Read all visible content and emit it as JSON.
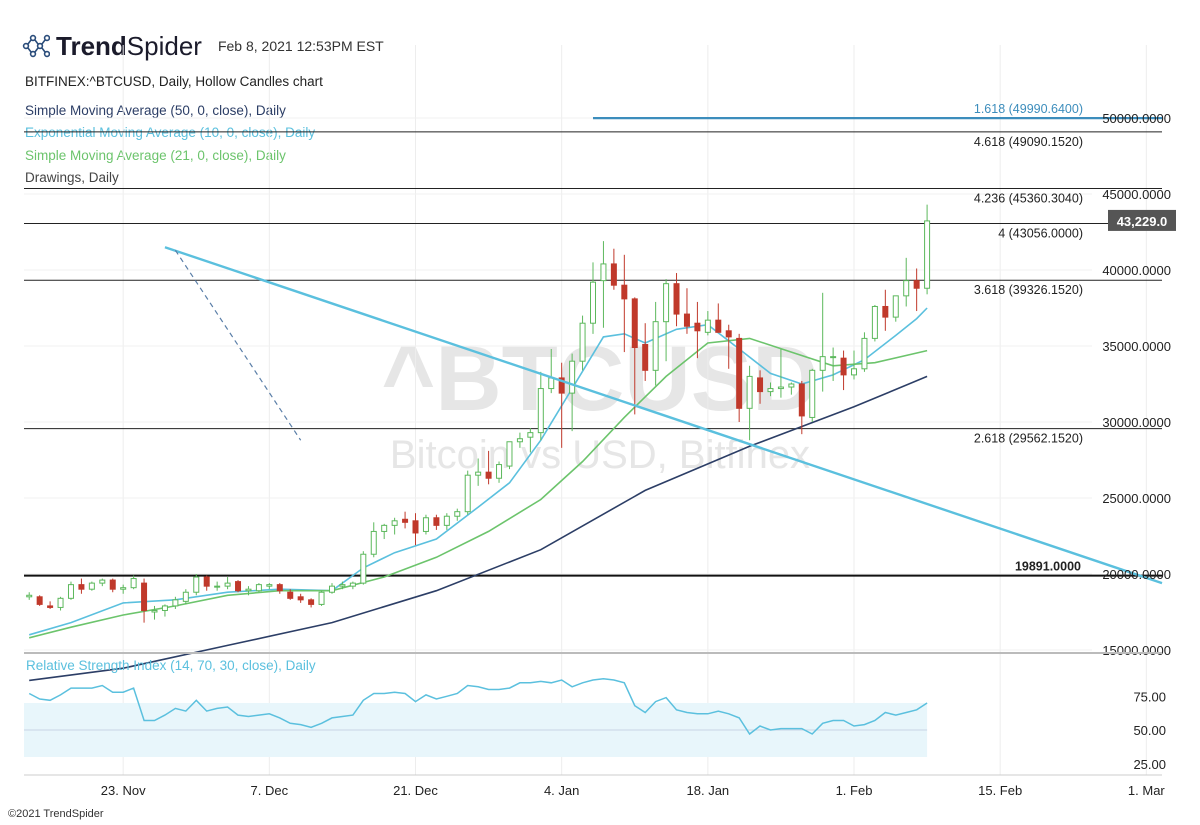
{
  "header": {
    "brand_bold": "Trend",
    "brand_light": "Spider",
    "timestamp": "Feb 8, 2021 12:53PM EST"
  },
  "legend": {
    "symbol_line": "BITFINEX:^BTCUSD, Daily, Hollow Candles chart",
    "sma50": "Simple Moving Average (50, 0, close), Daily",
    "ema10": "Exponential Moving Average (10, 0, close), Daily",
    "sma21": "Simple Moving Average (21, 0, close), Daily",
    "drawings": "Drawings, Daily"
  },
  "watermark": {
    "symbol": "^BTCUSD",
    "name": "Bitcoin vs USD, Bitfinex"
  },
  "footer": {
    "copyright": "©2021 TrendSpider"
  },
  "colors": {
    "up": "#5cb85c",
    "down": "#c0392b",
    "sma50": "#2c3e66",
    "ema10": "#5bc0de",
    "sma21": "#6cc46c",
    "trendline": "#5bc0de",
    "fib_top": "#3c8dbc",
    "rsi": "#5bc0de",
    "rsi_band": "#e8f6fb"
  },
  "chart_data": [
    {
      "type": "candlestick",
      "title": "BITFINEX:^BTCUSD, Daily, Hollow Candles chart",
      "x_ticks": [
        "23. Nov",
        "7. Dec",
        "21. Dec",
        "4. Jan",
        "18. Jan",
        "1. Feb",
        "15. Feb",
        "1. Mar"
      ],
      "x_tick_days": [
        0,
        14,
        28,
        42,
        56,
        70,
        84,
        98
      ],
      "x_range": [
        -9.5,
        99.5
      ],
      "y_ticks": [
        "50000.0000",
        "45000.0000",
        "40000.0000",
        "35000.0000",
        "30000.0000",
        "25000.0000",
        "20000.0000",
        "15000.0000"
      ],
      "y_tick_values": [
        50000,
        45000,
        40000,
        35000,
        30000,
        25000,
        20000,
        15000
      ],
      "ylim": [
        14000,
        52000
      ],
      "last_price": 43229,
      "last_price_label": "43,229.0",
      "horizontal_levels": [
        {
          "label": "1.618 (49990.6400)",
          "value": 49990.64,
          "style": "blue"
        },
        {
          "label": "4.618 (49090.1520)",
          "value": 49090.152,
          "style": "black"
        },
        {
          "label": "4.236 (45360.3040)",
          "value": 45360.304,
          "style": "black"
        },
        {
          "label": "4 (43056.0000)",
          "value": 43056,
          "style": "black"
        },
        {
          "label": "3.618 (39326.1520)",
          "value": 39326.152,
          "style": "black"
        },
        {
          "label": "2.618 (29562.1520)",
          "value": 29562.152,
          "style": "black"
        },
        {
          "label": "19891.0000",
          "value": 19891,
          "style": "bold"
        }
      ],
      "trendline": {
        "x": [
          4,
          99.5
        ],
        "y": [
          41500,
          19400
        ]
      },
      "dashed_line": {
        "x": [
          5,
          17
        ],
        "y": [
          41300,
          28800
        ]
      },
      "candles": [
        {
          "x": -9,
          "o": 18500,
          "h": 18800,
          "l": 18300,
          "c": 18600
        },
        {
          "x": -8,
          "o": 18500,
          "h": 18600,
          "l": 17900,
          "c": 18000
        },
        {
          "x": -7,
          "o": 17900,
          "h": 18200,
          "l": 17700,
          "c": 17800
        },
        {
          "x": -6,
          "o": 17800,
          "h": 18500,
          "l": 17600,
          "c": 18400
        },
        {
          "x": -5,
          "o": 18400,
          "h": 19500,
          "l": 18300,
          "c": 19300
        },
        {
          "x": -4,
          "o": 19300,
          "h": 19700,
          "l": 18700,
          "c": 19000
        },
        {
          "x": -3,
          "o": 19000,
          "h": 19500,
          "l": 18900,
          "c": 19400
        },
        {
          "x": -2,
          "o": 19400,
          "h": 19700,
          "l": 19200,
          "c": 19600
        },
        {
          "x": -1,
          "o": 19600,
          "h": 19700,
          "l": 18800,
          "c": 19000
        },
        {
          "x": 0,
          "o": 19000,
          "h": 19300,
          "l": 18700,
          "c": 19100
        },
        {
          "x": 1,
          "o": 19100,
          "h": 19900,
          "l": 19000,
          "c": 19700
        },
        {
          "x": 2,
          "o": 19400,
          "h": 19700,
          "l": 16800,
          "c": 17600
        },
        {
          "x": 3,
          "o": 17500,
          "h": 17900,
          "l": 17000,
          "c": 17600
        },
        {
          "x": 4,
          "o": 17600,
          "h": 18000,
          "l": 17200,
          "c": 17900
        },
        {
          "x": 5,
          "o": 17900,
          "h": 18500,
          "l": 17700,
          "c": 18300
        },
        {
          "x": 6,
          "o": 18200,
          "h": 19000,
          "l": 18000,
          "c": 18800
        },
        {
          "x": 7,
          "o": 18800,
          "h": 20000,
          "l": 18600,
          "c": 19800
        },
        {
          "x": 8,
          "o": 19800,
          "h": 19900,
          "l": 18900,
          "c": 19200
        },
        {
          "x": 9,
          "o": 19200,
          "h": 19500,
          "l": 18900,
          "c": 19200
        },
        {
          "x": 10,
          "o": 19200,
          "h": 19800,
          "l": 19000,
          "c": 19400
        },
        {
          "x": 11,
          "o": 19500,
          "h": 19600,
          "l": 18800,
          "c": 18900
        },
        {
          "x": 12,
          "o": 18900,
          "h": 19200,
          "l": 18600,
          "c": 19000
        },
        {
          "x": 13,
          "o": 18900,
          "h": 19400,
          "l": 18800,
          "c": 19300
        },
        {
          "x": 14,
          "o": 19200,
          "h": 19400,
          "l": 19000,
          "c": 19300
        },
        {
          "x": 15,
          "o": 19300,
          "h": 19400,
          "l": 18700,
          "c": 18900
        },
        {
          "x": 16,
          "o": 18800,
          "h": 19000,
          "l": 18300,
          "c": 18400
        },
        {
          "x": 17,
          "o": 18500,
          "h": 18700,
          "l": 18100,
          "c": 18300
        },
        {
          "x": 18,
          "o": 18300,
          "h": 18400,
          "l": 17800,
          "c": 18000
        },
        {
          "x": 19,
          "o": 18000,
          "h": 18900,
          "l": 17900,
          "c": 18800
        },
        {
          "x": 20,
          "o": 18800,
          "h": 19400,
          "l": 18700,
          "c": 19200
        },
        {
          "x": 21,
          "o": 19200,
          "h": 19500,
          "l": 19000,
          "c": 19300
        },
        {
          "x": 22,
          "o": 19200,
          "h": 19500,
          "l": 19000,
          "c": 19400
        },
        {
          "x": 23,
          "o": 19400,
          "h": 21500,
          "l": 19300,
          "c": 21300
        },
        {
          "x": 24,
          "o": 21300,
          "h": 23400,
          "l": 21100,
          "c": 22800
        },
        {
          "x": 25,
          "o": 22800,
          "h": 23300,
          "l": 22300,
          "c": 23200
        },
        {
          "x": 26,
          "o": 23200,
          "h": 23700,
          "l": 22600,
          "c": 23500
        },
        {
          "x": 27,
          "o": 23600,
          "h": 24100,
          "l": 23000,
          "c": 23400
        },
        {
          "x": 28,
          "o": 23500,
          "h": 24000,
          "l": 21900,
          "c": 22700
        },
        {
          "x": 29,
          "o": 22800,
          "h": 23900,
          "l": 22600,
          "c": 23700
        },
        {
          "x": 30,
          "o": 23700,
          "h": 23900,
          "l": 22900,
          "c": 23200
        },
        {
          "x": 31,
          "o": 23200,
          "h": 24000,
          "l": 22900,
          "c": 23800
        },
        {
          "x": 32,
          "o": 23800,
          "h": 24300,
          "l": 23500,
          "c": 24100
        },
        {
          "x": 33,
          "o": 24100,
          "h": 26800,
          "l": 23900,
          "c": 26500
        },
        {
          "x": 34,
          "o": 26500,
          "h": 27600,
          "l": 25800,
          "c": 26700
        },
        {
          "x": 35,
          "o": 26700,
          "h": 28100,
          "l": 25900,
          "c": 26300
        },
        {
          "x": 36,
          "o": 26300,
          "h": 27400,
          "l": 26000,
          "c": 27200
        },
        {
          "x": 37,
          "o": 27100,
          "h": 28600,
          "l": 26900,
          "c": 28700
        },
        {
          "x": 38,
          "o": 28700,
          "h": 29300,
          "l": 28300,
          "c": 28900
        },
        {
          "x": 39,
          "o": 29000,
          "h": 29600,
          "l": 28000,
          "c": 29300
        },
        {
          "x": 40,
          "o": 29300,
          "h": 33300,
          "l": 28800,
          "c": 32200
        },
        {
          "x": 41,
          "o": 32200,
          "h": 34800,
          "l": 31900,
          "c": 32900
        },
        {
          "x": 42,
          "o": 32900,
          "h": 33900,
          "l": 28300,
          "c": 31900
        },
        {
          "x": 43,
          "o": 31900,
          "h": 34500,
          "l": 29400,
          "c": 34000
        },
        {
          "x": 44,
          "o": 34000,
          "h": 37000,
          "l": 33400,
          "c": 36500
        },
        {
          "x": 45,
          "o": 36500,
          "h": 40500,
          "l": 35800,
          "c": 39200
        },
        {
          "x": 46,
          "o": 39300,
          "h": 41900,
          "l": 36200,
          "c": 40400
        },
        {
          "x": 47,
          "o": 40400,
          "h": 41400,
          "l": 38700,
          "c": 39000
        },
        {
          "x": 48,
          "o": 39000,
          "h": 41000,
          "l": 34600,
          "c": 38100
        },
        {
          "x": 49,
          "o": 38100,
          "h": 38200,
          "l": 30500,
          "c": 34900
        },
        {
          "x": 50,
          "o": 35100,
          "h": 36500,
          "l": 32700,
          "c": 33400
        },
        {
          "x": 51,
          "o": 33400,
          "h": 37900,
          "l": 32400,
          "c": 36600
        },
        {
          "x": 52,
          "o": 36600,
          "h": 39400,
          "l": 34000,
          "c": 39100
        },
        {
          "x": 53,
          "o": 39100,
          "h": 39800,
          "l": 36300,
          "c": 37100
        },
        {
          "x": 54,
          "o": 37100,
          "h": 38800,
          "l": 35800,
          "c": 36300
        },
        {
          "x": 55,
          "o": 36500,
          "h": 37900,
          "l": 34200,
          "c": 36000
        },
        {
          "x": 56,
          "o": 35900,
          "h": 37300,
          "l": 35700,
          "c": 36700
        },
        {
          "x": 57,
          "o": 36700,
          "h": 37800,
          "l": 35900,
          "c": 35900
        },
        {
          "x": 58,
          "o": 36000,
          "h": 36400,
          "l": 33500,
          "c": 35600
        },
        {
          "x": 59,
          "o": 35500,
          "h": 35800,
          "l": 30000,
          "c": 30900
        },
        {
          "x": 60,
          "o": 30900,
          "h": 33700,
          "l": 28800,
          "c": 33000
        },
        {
          "x": 61,
          "o": 32900,
          "h": 33400,
          "l": 31200,
          "c": 32000
        },
        {
          "x": 62,
          "o": 32000,
          "h": 32600,
          "l": 31700,
          "c": 32200
        },
        {
          "x": 63,
          "o": 32200,
          "h": 34800,
          "l": 31600,
          "c": 32300
        },
        {
          "x": 64,
          "o": 32300,
          "h": 32600,
          "l": 31800,
          "c": 32500
        },
        {
          "x": 65,
          "o": 32500,
          "h": 32700,
          "l": 29200,
          "c": 30400
        },
        {
          "x": 66,
          "o": 30300,
          "h": 33500,
          "l": 30000,
          "c": 33400
        },
        {
          "x": 67,
          "o": 33400,
          "h": 38500,
          "l": 32000,
          "c": 34300
        },
        {
          "x": 68,
          "o": 34300,
          "h": 34900,
          "l": 32700,
          "c": 34300
        },
        {
          "x": 69,
          "o": 34200,
          "h": 34700,
          "l": 32100,
          "c": 33100
        },
        {
          "x": 70,
          "o": 33100,
          "h": 34700,
          "l": 32800,
          "c": 33500
        },
        {
          "x": 71,
          "o": 33500,
          "h": 35900,
          "l": 33300,
          "c": 35500
        },
        {
          "x": 72,
          "o": 35500,
          "h": 37700,
          "l": 35300,
          "c": 37600
        },
        {
          "x": 73,
          "o": 37600,
          "h": 38700,
          "l": 36000,
          "c": 36900
        },
        {
          "x": 74,
          "o": 36900,
          "h": 38300,
          "l": 36600,
          "c": 38300
        },
        {
          "x": 75,
          "o": 38300,
          "h": 40800,
          "l": 37600,
          "c": 39300
        },
        {
          "x": 76,
          "o": 39300,
          "h": 40100,
          "l": 37300,
          "c": 38800
        },
        {
          "x": 77,
          "o": 38800,
          "h": 44300,
          "l": 38400,
          "c": 43229
        }
      ],
      "series": [
        {
          "name": "Simple Moving Average (50, 0, close), Daily",
          "x": [
            -9,
            0,
            10,
            20,
            30,
            40,
            50,
            60,
            70,
            77
          ],
          "y": [
            13000,
            13800,
            15300,
            16800,
            18900,
            21600,
            25500,
            28400,
            31000,
            33000
          ]
        },
        {
          "name": "Exponential Moving Average (10, 0, close), Daily",
          "x": [
            -9,
            -5,
            0,
            5,
            10,
            15,
            20,
            23,
            26,
            30,
            34,
            37,
            40,
            43,
            46,
            48,
            50,
            53,
            56,
            59,
            62,
            65,
            68,
            71,
            74,
            76,
            77
          ],
          "y": [
            16000,
            16800,
            18100,
            18300,
            18800,
            19000,
            18900,
            20400,
            21400,
            22300,
            24400,
            26000,
            28800,
            32200,
            35600,
            35800,
            35200,
            36100,
            36400,
            34800,
            33200,
            32500,
            33100,
            34100,
            35700,
            36800,
            37500
          ]
        },
        {
          "name": "Simple Moving Average (21, 0, close), Daily",
          "x": [
            -9,
            -5,
            0,
            5,
            10,
            15,
            20,
            25,
            30,
            35,
            40,
            44,
            48,
            52,
            56,
            60,
            64,
            68,
            72,
            77
          ],
          "y": [
            15800,
            16500,
            17300,
            17900,
            18600,
            18900,
            18900,
            19800,
            21100,
            22800,
            24900,
            27400,
            30300,
            33000,
            35200,
            35500,
            34600,
            33700,
            33900,
            34700
          ]
        }
      ]
    },
    {
      "type": "line",
      "title": "Relative Strength Index (14, 70, 30, close), Daily",
      "y_ticks": [
        "75.00",
        "50.00",
        "25.00"
      ],
      "y_tick_values": [
        75,
        50,
        25
      ],
      "ylim": [
        20,
        100
      ],
      "band": [
        30,
        70
      ],
      "series": [
        {
          "name": "Relative Strength Index (14, 70, 30, close), Daily",
          "x": [
            -9,
            -8,
            -7,
            -6,
            -5,
            -4,
            -3,
            -2,
            -1,
            0,
            1,
            2,
            3,
            4,
            5,
            6,
            7,
            8,
            9,
            10,
            11,
            12,
            13,
            14,
            15,
            16,
            17,
            18,
            19,
            20,
            21,
            22,
            23,
            24,
            25,
            26,
            27,
            28,
            29,
            30,
            31,
            32,
            33,
            34,
            35,
            36,
            37,
            38,
            39,
            40,
            41,
            42,
            43,
            44,
            45,
            46,
            47,
            48,
            49,
            50,
            51,
            52,
            53,
            54,
            55,
            56,
            57,
            58,
            59,
            60,
            61,
            62,
            63,
            64,
            65,
            66,
            67,
            68,
            69,
            70,
            71,
            72,
            73,
            74,
            75,
            76,
            77
          ],
          "y": [
            77,
            73,
            72,
            76,
            81,
            81,
            81,
            83,
            78,
            78,
            81,
            57,
            57,
            61,
            66,
            64,
            72,
            64,
            66,
            67,
            61,
            60,
            61,
            62,
            59,
            55,
            54,
            52,
            55,
            59,
            60,
            61,
            72,
            77,
            77,
            78,
            77,
            71,
            76,
            73,
            75,
            77,
            83,
            82,
            80,
            80,
            81,
            85,
            85,
            86,
            85,
            87,
            82,
            85,
            87,
            88,
            87,
            85,
            68,
            63,
            71,
            74,
            65,
            63,
            62,
            62,
            64,
            62,
            59,
            47,
            53,
            50,
            51,
            51,
            51,
            47,
            55,
            57,
            57,
            53,
            54,
            57,
            63,
            61,
            63,
            65,
            70
          ]
        }
      ]
    }
  ]
}
